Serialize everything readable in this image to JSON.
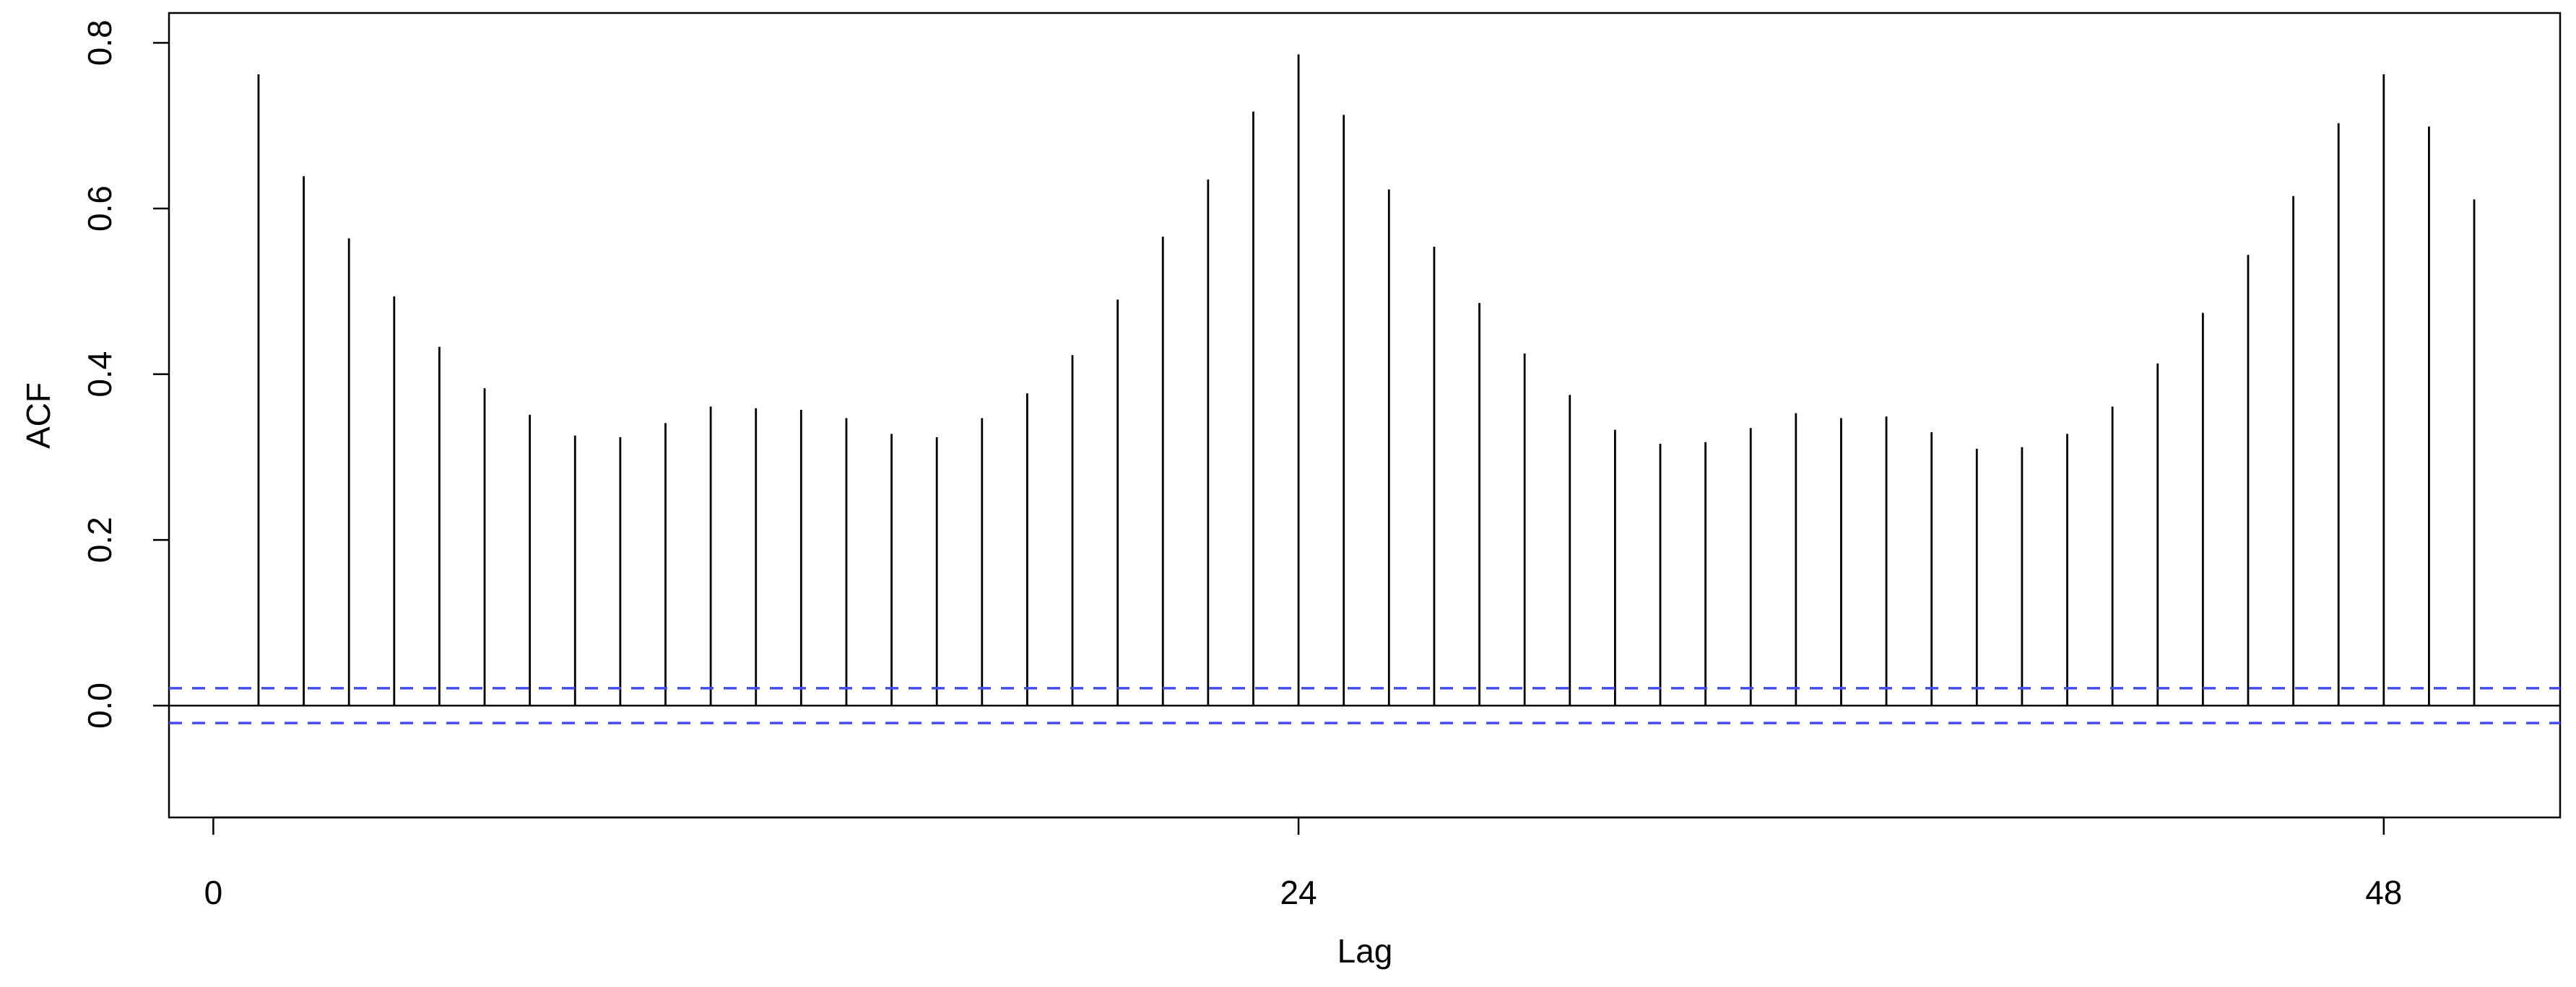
{
  "chart_data": {
    "type": "acf",
    "xlabel": "Lag",
    "ylabel": "ACF",
    "x": [
      1,
      2,
      3,
      4,
      5,
      6,
      7,
      8,
      9,
      10,
      11,
      12,
      13,
      14,
      15,
      16,
      17,
      18,
      19,
      20,
      21,
      22,
      23,
      24,
      25,
      26,
      27,
      28,
      29,
      30,
      31,
      32,
      33,
      34,
      35,
      36,
      37,
      38,
      39,
      40,
      41,
      42,
      43,
      44,
      45,
      46,
      47,
      48,
      49,
      50
    ],
    "values": [
      0.762,
      0.639,
      0.564,
      0.494,
      0.433,
      0.383,
      0.351,
      0.326,
      0.324,
      0.341,
      0.361,
      0.359,
      0.357,
      0.347,
      0.328,
      0.324,
      0.347,
      0.377,
      0.423,
      0.49,
      0.566,
      0.635,
      0.717,
      0.786,
      0.713,
      0.623,
      0.554,
      0.486,
      0.425,
      0.375,
      0.333,
      0.316,
      0.318,
      0.335,
      0.353,
      0.347,
      0.349,
      0.33,
      0.31,
      0.312,
      0.328,
      0.361,
      0.413,
      0.474,
      0.544,
      0.615,
      0.703,
      0.762,
      0.699,
      0.611
    ],
    "color": "#000000",
    "ci": 0.021,
    "ci_color": "#4a4aee",
    "xlim": [
      -0.98,
      51.9
    ],
    "ylim": [
      -0.135,
      0.836
    ],
    "xticks": [
      0,
      24,
      48
    ],
    "yticks": [
      {
        "value": 0,
        "label": "0.0"
      },
      0.2,
      0.4,
      0.6,
      0.8
    ]
  }
}
